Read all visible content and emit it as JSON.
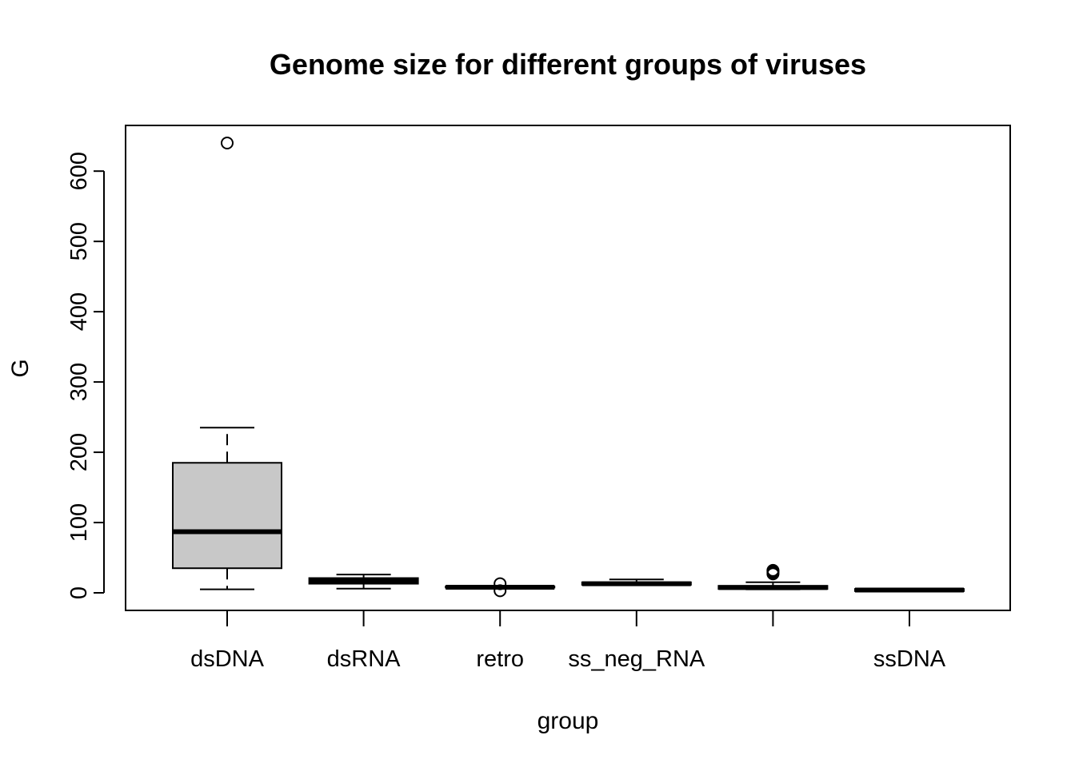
{
  "chart_data": {
    "type": "boxplot",
    "title": "Genome size for different groups of viruses",
    "xlabel": "group",
    "ylabel": "G",
    "ylim": [
      -25,
      665
    ],
    "yticks": [
      0,
      100,
      200,
      300,
      400,
      500,
      600
    ],
    "ytick_labels": [
      "0",
      "100",
      "200",
      "300",
      "400",
      "500",
      "600"
    ],
    "categories": [
      "dsDNA",
      "dsRNA",
      "retro",
      "ss_neg_RNA",
      "",
      "ssDNA"
    ],
    "box_fill": "#c8c8c8",
    "boxes": [
      {
        "category": "dsDNA",
        "whisker_low": 5,
        "q1": 35,
        "median": 87,
        "q3": 185,
        "whisker_high": 235,
        "outliers": [
          640
        ]
      },
      {
        "category": "dsRNA",
        "whisker_low": 6,
        "q1": 13,
        "median": 17,
        "q3": 21,
        "whisker_high": 26,
        "outliers": []
      },
      {
        "category": "retro",
        "whisker_low": 7,
        "q1": 7.5,
        "median": 8,
        "q3": 9,
        "whisker_high": 9.5,
        "outliers": [
          3,
          13
        ]
      },
      {
        "category": "ss_neg_RNA",
        "whisker_low": 11,
        "q1": 11.5,
        "median": 13,
        "q3": 15,
        "whisker_high": 19,
        "outliers": []
      },
      {
        "category": "",
        "whisker_low": 5,
        "q1": 5.5,
        "median": 7.5,
        "q3": 10,
        "whisker_high": 15,
        "outliers": [
          27,
          29,
          31,
          32
        ]
      },
      {
        "category": "ssDNA",
        "whisker_low": 2,
        "q1": 2.5,
        "median": 4,
        "q3": 5.5,
        "whisker_high": 6,
        "outliers": []
      }
    ]
  }
}
